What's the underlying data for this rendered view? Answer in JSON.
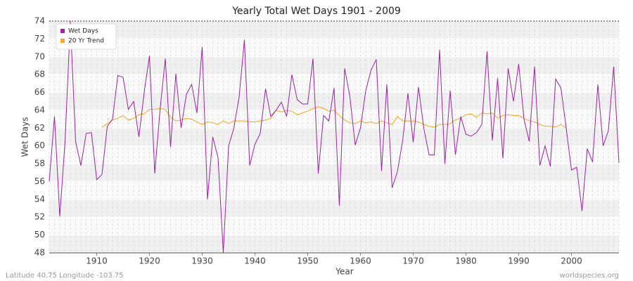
{
  "chart_data": {
    "type": "line",
    "title": "Yearly Total Wet Days 1901 - 2009",
    "xlabel": "Year",
    "ylabel": "Wet Days",
    "footer_left": "Latitude 40.75 Longitude -103.75",
    "footer_right": "worldspecies.org",
    "x": [
      1901,
      1902,
      1903,
      1904,
      1905,
      1906,
      1907,
      1908,
      1909,
      1910,
      1911,
      1912,
      1913,
      1914,
      1915,
      1916,
      1917,
      1918,
      1919,
      1920,
      1921,
      1922,
      1923,
      1924,
      1925,
      1926,
      1927,
      1928,
      1929,
      1930,
      1931,
      1932,
      1933,
      1934,
      1935,
      1936,
      1937,
      1938,
      1939,
      1940,
      1941,
      1942,
      1943,
      1944,
      1945,
      1946,
      1947,
      1948,
      1949,
      1950,
      1951,
      1952,
      1953,
      1954,
      1955,
      1956,
      1957,
      1958,
      1959,
      1960,
      1961,
      1962,
      1963,
      1964,
      1965,
      1966,
      1967,
      1968,
      1969,
      1970,
      1971,
      1972,
      1973,
      1974,
      1975,
      1976,
      1977,
      1978,
      1979,
      1980,
      1981,
      1982,
      1983,
      1984,
      1985,
      1986,
      1987,
      1988,
      1989,
      1990,
      1991,
      1992,
      1993,
      1994,
      1995,
      1996,
      1997,
      1998,
      1999,
      2000,
      2001,
      2002,
      2003,
      2004,
      2005,
      2006,
      2007,
      2008,
      2009
    ],
    "series": [
      {
        "name": "Wet Days",
        "color": "#a020a8",
        "values": [
          56,
          63.3,
          52.1,
          60.5,
          74,
          60.5,
          57.8,
          61.4,
          61.5,
          56.2,
          56.8,
          62.2,
          63,
          67.9,
          67.7,
          64.1,
          65,
          61,
          66,
          70.1,
          56.9,
          64,
          69.8,
          59.9,
          68.1,
          62,
          65.8,
          66.9,
          63.7,
          71.1,
          54,
          61,
          58.7,
          48,
          60,
          62,
          65.5,
          71.9,
          57.8,
          60.2,
          61.4,
          66.4,
          63.3,
          64,
          64.9,
          63.3,
          68,
          65.2,
          64.7,
          64.7,
          69.8,
          56.9,
          63.4,
          62.8,
          66.5,
          53.3,
          68.7,
          65.5,
          60.1,
          62,
          66.2,
          68.5,
          69.7,
          57.2,
          66.9,
          55.3,
          57.1,
          60.6,
          65.9,
          60.4,
          66.6,
          62,
          59,
          59,
          70.8,
          58,
          66.2,
          59,
          63.3,
          61.3,
          61.1,
          61.5,
          62.4,
          70.6,
          60.6,
          67.6,
          58.6,
          68.7,
          65,
          69.2,
          63,
          60.5,
          68.9,
          57.8,
          60,
          57.7,
          67.5,
          66.5,
          62,
          57.3,
          57.6,
          52.7,
          59.7,
          58.2,
          66.9,
          60,
          61.7,
          68.9,
          58.1
        ]
      },
      {
        "name": "20 Yr Trend",
        "color": "#f5a623",
        "values": [
          null,
          null,
          null,
          null,
          null,
          null,
          null,
          null,
          null,
          null,
          62.1,
          62.5,
          62.9,
          63.1,
          63.4,
          62.9,
          63.1,
          63.5,
          63.6,
          64.1,
          64.1,
          64.2,
          64.1,
          63.2,
          62.8,
          62.9,
          63.1,
          63,
          62.7,
          62.4,
          62.7,
          62.6,
          62.4,
          62.8,
          62.5,
          62.8,
          62.8,
          62.8,
          62.7,
          62.7,
          62.8,
          62.9,
          63.1,
          64,
          63.8,
          64,
          63.9,
          63.5,
          63.7,
          63.9,
          64.2,
          64.4,
          64.2,
          63.9,
          64,
          63.4,
          62.9,
          62.6,
          62.5,
          62.8,
          62.6,
          62.7,
          62.5,
          62.8,
          62.6,
          62.4,
          63.3,
          62.8,
          62.8,
          62.8,
          62.7,
          62.4,
          62.2,
          62.1,
          62.4,
          62.4,
          62.5,
          62.9,
          63.1,
          63.5,
          63.6,
          63.2,
          63.7,
          63.6,
          63.7,
          63.1,
          63.4,
          63.5,
          63.4,
          63.4,
          63.1,
          62.8,
          62.7,
          62.4,
          62.2,
          62.2,
          62.1,
          62.4,
          62,
          null,
          null,
          null,
          null,
          null,
          null,
          null,
          null,
          null,
          null
        ]
      }
    ],
    "xlim": [
      1901,
      2009
    ],
    "xticks": [
      1910,
      1920,
      1930,
      1940,
      1950,
      1960,
      1970,
      1980,
      1990,
      2000
    ],
    "ylim": [
      48,
      74
    ],
    "yticks": [
      48,
      50,
      52,
      54,
      56,
      58,
      60,
      62,
      64,
      66,
      68,
      70,
      72,
      74
    ],
    "grid": true,
    "legend": "top-left"
  }
}
